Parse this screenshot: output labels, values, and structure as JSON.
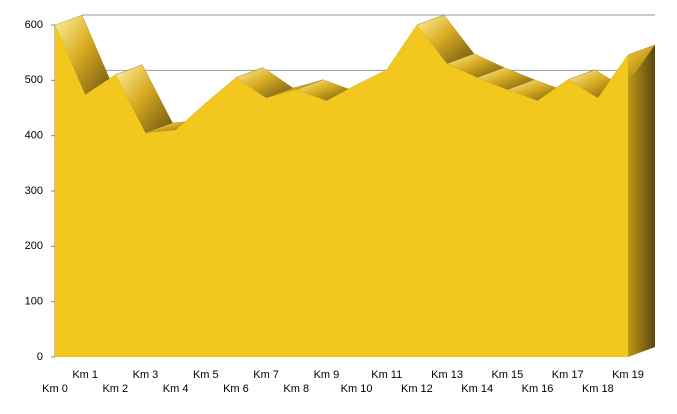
{
  "chart_data": {
    "type": "area3d",
    "categories": [
      "Km 0",
      "Km 1",
      "Km 2",
      "Km 3",
      "Km 4",
      "Km 5",
      "Km 6",
      "Km 7",
      "Km 8",
      "Km 9",
      "Km 10",
      "Km 11",
      "Km 12",
      "Km 13",
      "Km 14",
      "Km 15",
      "Km 16",
      "Km 17",
      "Km 18",
      "Km 19"
    ],
    "values": [
      600,
      474,
      510,
      405,
      410,
      459,
      505,
      468,
      483,
      463,
      492,
      519,
      600,
      530,
      505,
      483,
      463,
      501,
      468,
      546
    ],
    "color": "#f2c81e",
    "ylim": [
      0,
      600
    ],
    "yticks": [
      0,
      100,
      200,
      300,
      400,
      500,
      600
    ],
    "grid": true
  }
}
